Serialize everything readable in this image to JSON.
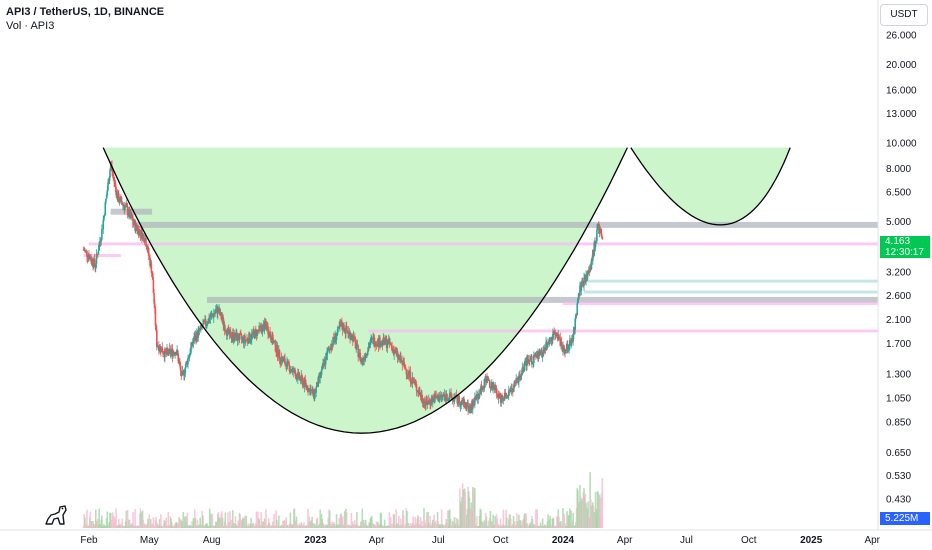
{
  "header": {
    "symbol": "API3 / TetherUS, 1D, BINANCE",
    "volume_label": "Vol · API3"
  },
  "price_axis": {
    "currency": "USDT",
    "ticks": [
      "26.000",
      "20.000",
      "16.000",
      "13.000",
      "10.000",
      "8.000",
      "6.500",
      "5.000",
      "3.200",
      "2.600",
      "2.100",
      "1.700",
      "1.300",
      "1.050",
      "0.850",
      "0.650",
      "0.530",
      "0.430"
    ]
  },
  "current_price": {
    "value": "4.163",
    "countdown": "12:30:17",
    "color": "#00c853"
  },
  "volume_tag": {
    "value": "5.225M",
    "color": "#2962ff"
  },
  "time_axis": {
    "labels": [
      "Feb",
      "May",
      "Aug",
      "2023",
      "Apr",
      "Jul",
      "Oct",
      "2024",
      "Apr",
      "Jul",
      "Oct",
      "2025",
      "Apr"
    ]
  },
  "logo": {
    "icon": "tradingview-dino-icon"
  },
  "colors": {
    "up": "#26a69a",
    "down": "#ef5350",
    "cup_fill": "#ccf5cc",
    "curve": "#000000",
    "resistance_band": "#b2b5be",
    "pink_band": "#f8bbf0"
  },
  "chart_data": {
    "type": "candlestick",
    "scale": "log",
    "ylim": [
      0.37,
      32
    ],
    "x_range": [
      "2022-01-24",
      "2025-04-15"
    ],
    "anchors": [
      {
        "date": "2022-01-24",
        "price": 3.9
      },
      {
        "date": "2022-02-01",
        "price": 3.7
      },
      {
        "date": "2022-02-10",
        "price": 3.4
      },
      {
        "date": "2022-02-20",
        "price": 4.6
      },
      {
        "date": "2022-03-05",
        "price": 8.3
      },
      {
        "date": "2022-03-15",
        "price": 6.2
      },
      {
        "date": "2022-03-28",
        "price": 5.6
      },
      {
        "date": "2022-04-10",
        "price": 4.8
      },
      {
        "date": "2022-04-25",
        "price": 4.3
      },
      {
        "date": "2022-05-05",
        "price": 3.2
      },
      {
        "date": "2022-05-12",
        "price": 1.7
      },
      {
        "date": "2022-05-25",
        "price": 1.55
      },
      {
        "date": "2022-06-10",
        "price": 1.6
      },
      {
        "date": "2022-06-18",
        "price": 1.25
      },
      {
        "date": "2022-07-05",
        "price": 1.75
      },
      {
        "date": "2022-07-20",
        "price": 2.0
      },
      {
        "date": "2022-08-10",
        "price": 2.3
      },
      {
        "date": "2022-08-25",
        "price": 1.85
      },
      {
        "date": "2022-09-20",
        "price": 1.75
      },
      {
        "date": "2022-10-20",
        "price": 2.0
      },
      {
        "date": "2022-11-10",
        "price": 1.5
      },
      {
        "date": "2022-12-15",
        "price": 1.2
      },
      {
        "date": "2022-12-30",
        "price": 1.08
      },
      {
        "date": "2023-01-20",
        "price": 1.6
      },
      {
        "date": "2023-02-08",
        "price": 2.0
      },
      {
        "date": "2023-02-25",
        "price": 1.8
      },
      {
        "date": "2023-03-10",
        "price": 1.45
      },
      {
        "date": "2023-03-25",
        "price": 1.75
      },
      {
        "date": "2023-04-20",
        "price": 1.7
      },
      {
        "date": "2023-05-15",
        "price": 1.35
      },
      {
        "date": "2023-06-12",
        "price": 1.0
      },
      {
        "date": "2023-06-25",
        "price": 1.05
      },
      {
        "date": "2023-07-15",
        "price": 1.07
      },
      {
        "date": "2023-08-10",
        "price": 1.0
      },
      {
        "date": "2023-08-17",
        "price": 0.95
      },
      {
        "date": "2023-09-10",
        "price": 1.25
      },
      {
        "date": "2023-10-01",
        "price": 1.05
      },
      {
        "date": "2023-10-20",
        "price": 1.15
      },
      {
        "date": "2023-11-10",
        "price": 1.45
      },
      {
        "date": "2023-12-01",
        "price": 1.55
      },
      {
        "date": "2023-12-20",
        "price": 1.9
      },
      {
        "date": "2024-01-03",
        "price": 1.6
      },
      {
        "date": "2024-01-15",
        "price": 1.75
      },
      {
        "date": "2024-01-25",
        "price": 2.7
      },
      {
        "date": "2024-02-10",
        "price": 3.3
      },
      {
        "date": "2024-02-22",
        "price": 4.8
      },
      {
        "date": "2024-02-28",
        "price": 4.163
      }
    ],
    "cup": {
      "left_rim": {
        "date": "2022-02-22",
        "price": 9.6
      },
      "bottom": {
        "date": "2023-03-10",
        "price": 0.77
      },
      "right_rim": {
        "date": "2024-04-05",
        "price": 9.6
      }
    },
    "handle": {
      "start": {
        "date": "2024-04-10",
        "price": 9.6
      },
      "bottom": {
        "date": "2024-08-20",
        "price": 4.85
      },
      "end": {
        "date": "2024-12-01",
        "price": 9.6
      }
    },
    "levels": [
      {
        "price": 4.85,
        "start": "2022-04-05",
        "end": "2025-04-15",
        "kind": "gray"
      },
      {
        "price": 4.1,
        "start": "2022-02-01",
        "end": "2025-04-15",
        "kind": "pink"
      },
      {
        "price": 2.95,
        "start": "2024-02-01",
        "end": "2025-04-15",
        "kind": "blue"
      },
      {
        "price": 2.68,
        "start": "2024-02-01",
        "end": "2025-04-15",
        "kind": "blue"
      },
      {
        "price": 2.5,
        "start": "2022-07-25",
        "end": "2025-04-15",
        "kind": "gray"
      },
      {
        "price": 2.42,
        "start": "2024-01-01",
        "end": "2025-04-15",
        "kind": "pink"
      },
      {
        "price": 1.9,
        "start": "2023-03-20",
        "end": "2025-04-15",
        "kind": "pink"
      },
      {
        "price": 5.45,
        "start": "2022-03-05",
        "end": "2022-05-05",
        "kind": "gray"
      },
      {
        "price": 3.7,
        "start": "2022-01-24",
        "end": "2022-03-20",
        "kind": "pink"
      }
    ]
  }
}
